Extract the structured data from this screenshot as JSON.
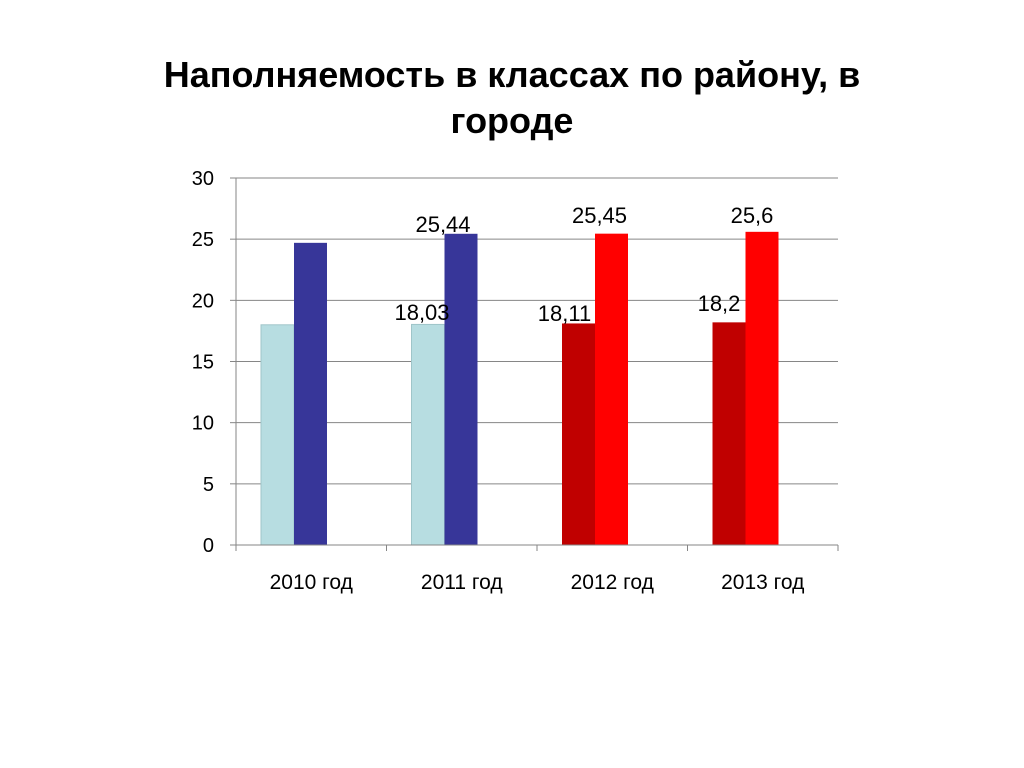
{
  "title": "Наполняемость в классах по району, в городе",
  "chart_data": {
    "type": "bar",
    "title": "Наполняемость в классах по району, в городе",
    "xlabel": "",
    "ylabel": "",
    "categories": [
      "2010 год",
      "2011 год",
      "2012 год",
      "2013 год"
    ],
    "series": [
      {
        "values": [
          18.0,
          18.03,
          18.11,
          18.2
        ]
      },
      {
        "values": [
          24.7,
          25.44,
          25.45,
          25.6
        ]
      }
    ],
    "bar_colors": [
      [
        "#b7dde1",
        "#373699"
      ],
      [
        "#b7dde1",
        "#373699"
      ],
      [
        "#c00000",
        "#ff0000"
      ],
      [
        "#c00000",
        "#ff0000"
      ]
    ],
    "data_labels": [
      [
        "",
        ""
      ],
      [
        "18,03",
        "25,44"
      ],
      [
        "18,11",
        "25,45"
      ],
      [
        "18,2",
        "25,6"
      ]
    ],
    "ylim": [
      0,
      30
    ],
    "yticks": [
      "0",
      "5",
      "10",
      "15",
      "20",
      "25",
      "30"
    ],
    "grid": true,
    "legend": "none"
  }
}
